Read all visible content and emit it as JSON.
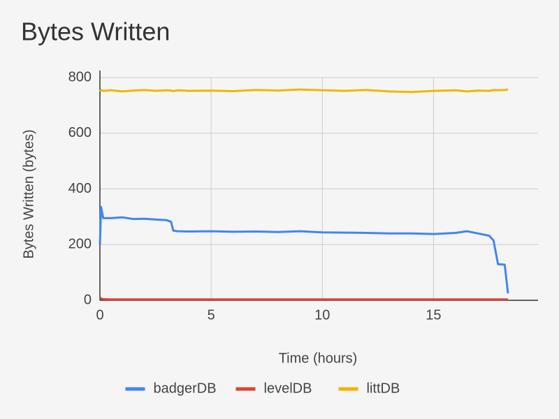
{
  "chart_data": {
    "type": "line",
    "title": "Bytes Written",
    "x_label": "Time (hours)",
    "y_label": "Bytes Written (bytes)",
    "x": [
      0,
      0.05,
      0.15,
      0.5,
      1,
      1.5,
      2,
      2.5,
      3,
      3.2,
      3.3,
      3.5,
      4,
      5,
      6,
      7,
      8,
      9,
      10,
      11,
      12,
      13,
      14,
      15,
      16,
      16.5,
      17,
      17.5,
      17.7,
      17.9,
      18.2,
      18.35
    ],
    "series": [
      {
        "name": "badgerDB",
        "color": "#4285f4",
        "values": [
          200,
          335,
          295,
          295,
          298,
          292,
          293,
          290,
          288,
          282,
          250,
          248,
          247,
          248,
          246,
          247,
          245,
          248,
          244,
          243,
          242,
          240,
          240,
          238,
          242,
          248,
          240,
          232,
          215,
          130,
          128,
          25
        ]
      },
      {
        "name": "levelDB",
        "color": "#db4437",
        "values": [
          10,
          6,
          4,
          3,
          3,
          3,
          3,
          3,
          3,
          3,
          3,
          3,
          3,
          3,
          3,
          3,
          3,
          3,
          3,
          3,
          3,
          3,
          3,
          3,
          3,
          3,
          3,
          3,
          3,
          3,
          3,
          3
        ]
      },
      {
        "name": "littDB",
        "color": "#f4b400",
        "values": [
          750,
          755,
          752,
          754,
          750,
          753,
          755,
          752,
          754,
          753,
          751,
          754,
          752,
          753,
          751,
          755,
          753,
          757,
          754,
          752,
          755,
          750,
          748,
          752,
          754,
          750,
          753,
          752,
          755,
          754,
          755,
          757
        ]
      }
    ],
    "xlim": [
      0,
      19.7
    ],
    "xticks": [
      0,
      5,
      10,
      15
    ],
    "ylim": [
      0,
      800
    ],
    "yticks": [
      0,
      200,
      400,
      600,
      800
    ],
    "grid": true,
    "legend": "bottom"
  }
}
